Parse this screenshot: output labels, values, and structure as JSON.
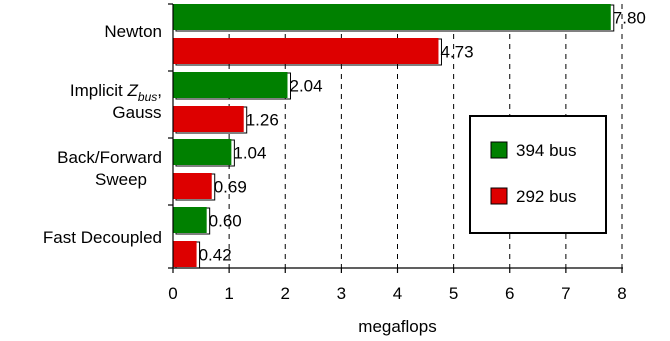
{
  "chart_data": {
    "type": "bar",
    "orientation": "horizontal",
    "title": "",
    "xlabel": "megaflops",
    "ylabel": "",
    "xlim": [
      0,
      8
    ],
    "xticks": [
      0,
      1,
      2,
      3,
      4,
      5,
      6,
      7,
      8
    ],
    "grid": "vertical dashed",
    "legend_position": "right",
    "categories": [
      {
        "label_lines": [
          "Newton"
        ],
        "italic_sub": null
      },
      {
        "label_lines": [
          "Implicit Z",
          "Gauss"
        ],
        "italic_sub": {
          "main": "Z",
          "sub": "bus"
        }
      },
      {
        "label_lines": [
          "Back/Forward",
          "Sweep"
        ],
        "italic_sub": null
      },
      {
        "label_lines": [
          "Fast Decoupled"
        ],
        "italic_sub": null
      }
    ],
    "series": [
      {
        "name": "394 bus",
        "color": "#008000",
        "values": [
          7.8,
          2.04,
          1.04,
          0.6
        ],
        "labels": [
          "7.80",
          "2.04",
          "1.04",
          "0.60"
        ]
      },
      {
        "name": "292 bus",
        "color": "#dd0000",
        "values": [
          4.73,
          1.26,
          0.69,
          0.42
        ],
        "labels": [
          "4.73",
          "1.26",
          "0.69",
          "0.42"
        ]
      }
    ]
  }
}
